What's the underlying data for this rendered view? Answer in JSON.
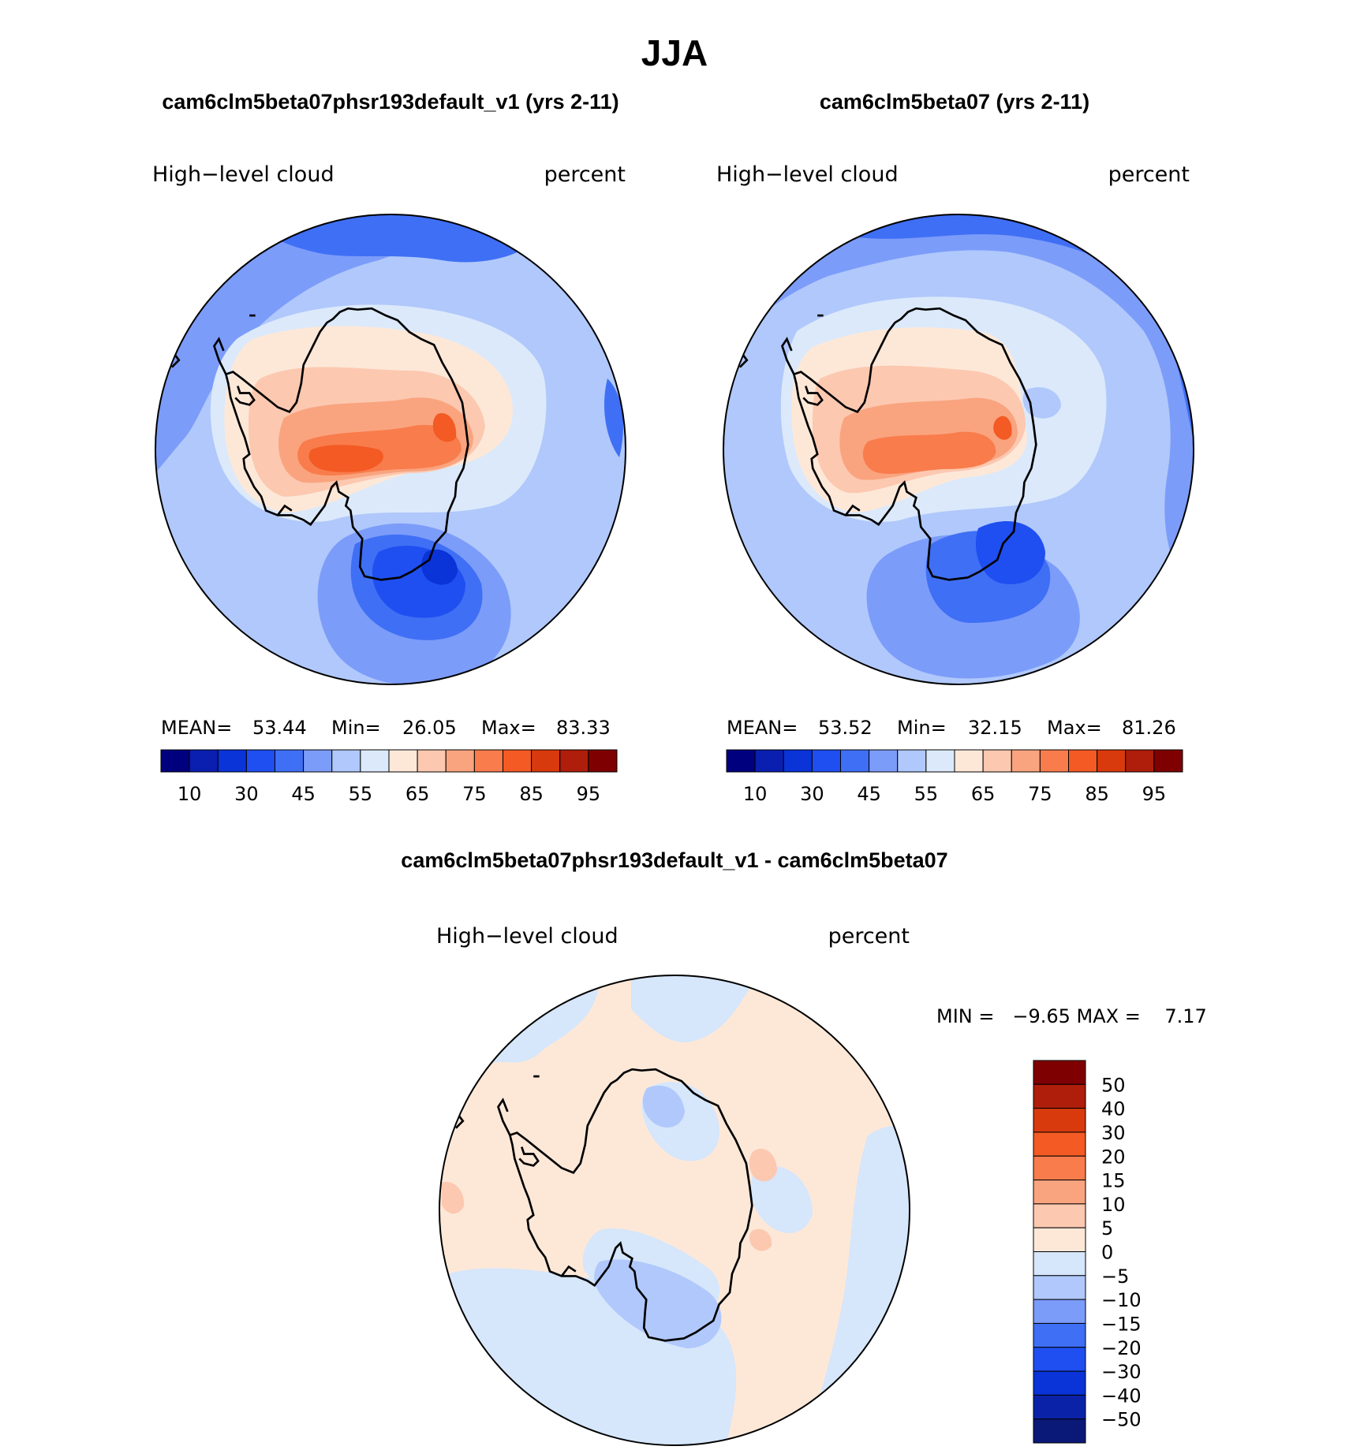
{
  "page": {
    "season_title": "JJA",
    "colors": {
      "seq": [
        "#00007f",
        "#0a1fb0",
        "#0a33d8",
        "#1f4ff0",
        "#3f6ff5",
        "#7c9cfa",
        "#b0c8fb",
        "#dbe9fb",
        "#fde8d8",
        "#fcc8b0",
        "#f9a47f",
        "#f97c4c",
        "#f35a24",
        "#d83a0e",
        "#ae1e0a",
        "#7f0000"
      ],
      "diff": [
        "#0a1978",
        "#0a22a8",
        "#0a33d8",
        "#1f4ff0",
        "#3f6ff5",
        "#7c9cfa",
        "#b0c8fb",
        "#d6e6fb",
        "#fde8d8",
        "#fcc8b0",
        "#f9a47f",
        "#f97c4c",
        "#f35a24",
        "#d83a0e",
        "#ae1e0a",
        "#7f0000"
      ]
    }
  },
  "chart_data": [
    {
      "type": "heatmap",
      "projection": "south-polar-stereographic",
      "title": "cam6clm5beta07phsr193default_v1 (yrs 2-11)",
      "variable": "High−level cloud",
      "units": "percent",
      "stats": {
        "mean_label": "MEAN=",
        "mean": "53.44",
        "min_label": "Min=",
        "min": "26.05",
        "max_label": "Max=",
        "max": "83.33"
      },
      "colorbar_ticks": [
        "10",
        "30",
        "45",
        "55",
        "65",
        "75",
        "85",
        "95"
      ]
    },
    {
      "type": "heatmap",
      "projection": "south-polar-stereographic",
      "title": "cam6clm5beta07 (yrs 2-11)",
      "variable": "High−level cloud",
      "units": "percent",
      "stats": {
        "mean_label": "MEAN=",
        "mean": "53.52",
        "min_label": "Min=",
        "min": "32.15",
        "max_label": "Max=",
        "max": "81.26"
      },
      "colorbar_ticks": [
        "10",
        "30",
        "45",
        "55",
        "65",
        "75",
        "85",
        "95"
      ]
    },
    {
      "type": "heatmap",
      "projection": "south-polar-stereographic",
      "title": "cam6clm5beta07phsr193default_v1 - cam6clm5beta07",
      "variable": "High−level cloud",
      "units": "percent",
      "range_text": "MIN =   −9.65 MAX =    7.17",
      "colorbar_levels": [
        "50",
        "40",
        "30",
        "20",
        "15",
        "10",
        "5",
        "0",
        "−5",
        "−10",
        "−15",
        "−20",
        "−30",
        "−40",
        "−50"
      ]
    }
  ]
}
